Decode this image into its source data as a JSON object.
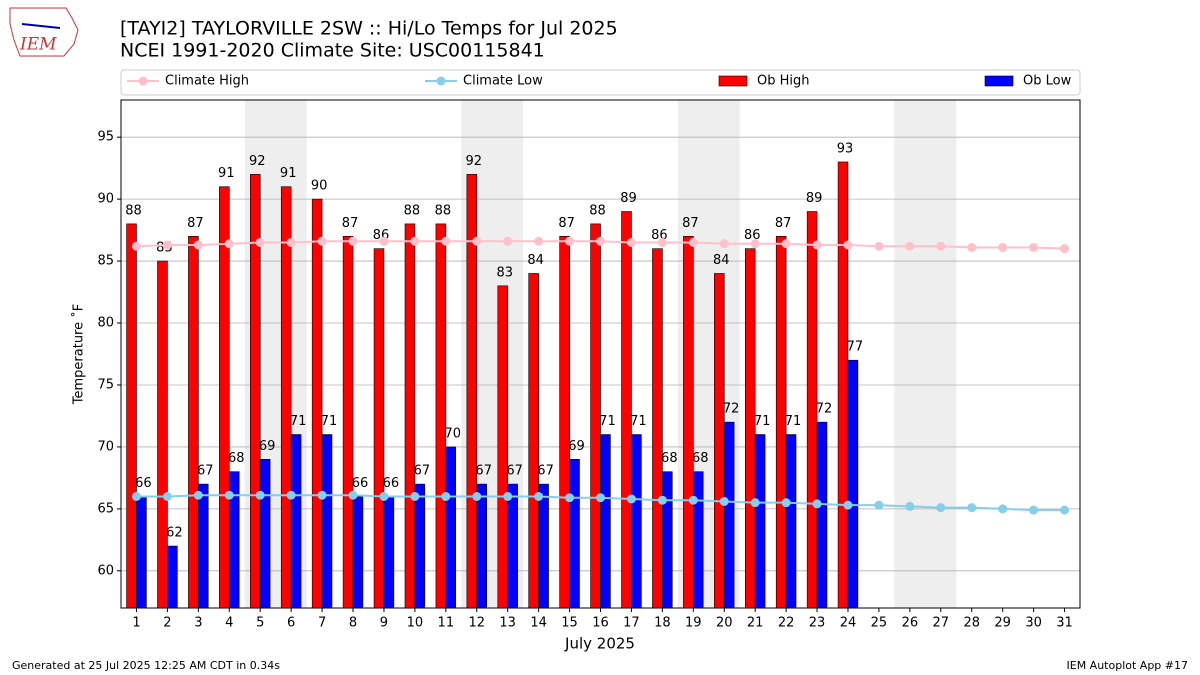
{
  "logo_text": "IEM",
  "footer_left": "Generated at 25 Jul 2025 12:25 AM CDT in 0.34s",
  "footer_right": "IEM Autoplot App #17",
  "chart_data": {
    "type": "bar",
    "title": "[TAYI2] TAYLORVILLE 2SW :: Hi/Lo Temps for Jul 2025",
    "subtitle": "NCEI 1991-2020 Climate Site: USC00115841",
    "ylabel": "Temperature ˚F",
    "xlabel": "July 2025",
    "x": [
      1,
      2,
      3,
      4,
      5,
      6,
      7,
      8,
      9,
      10,
      11,
      12,
      13,
      14,
      15,
      16,
      17,
      18,
      19,
      20,
      21,
      22,
      23,
      24,
      25,
      26,
      27,
      28,
      29,
      30,
      31
    ],
    "xlim": [
      0.5,
      31.5
    ],
    "ylim": [
      57,
      98
    ],
    "yticks": [
      60,
      65,
      70,
      75,
      80,
      85,
      90,
      95
    ],
    "grid": true,
    "shaded_days": [
      [
        5,
        6
      ],
      [
        12,
        13
      ],
      [
        19,
        20
      ],
      [
        26,
        27
      ]
    ],
    "series": [
      {
        "name": "Climate High",
        "type": "line",
        "color": "#ffc0cb",
        "values": [
          86.2,
          86.3,
          86.3,
          86.4,
          86.5,
          86.5,
          86.6,
          86.6,
          86.6,
          86.6,
          86.6,
          86.6,
          86.6,
          86.6,
          86.6,
          86.6,
          86.5,
          86.5,
          86.5,
          86.4,
          86.4,
          86.4,
          86.3,
          86.3,
          86.2,
          86.2,
          86.2,
          86.1,
          86.1,
          86.1,
          86.0
        ]
      },
      {
        "name": "Climate Low",
        "type": "line",
        "color": "#87ceeb",
        "values": [
          66.0,
          66.0,
          66.1,
          66.1,
          66.1,
          66.1,
          66.1,
          66.1,
          66.0,
          66.0,
          66.0,
          66.0,
          66.0,
          66.0,
          65.9,
          65.9,
          65.8,
          65.7,
          65.7,
          65.6,
          65.5,
          65.5,
          65.4,
          65.3,
          65.3,
          65.2,
          65.1,
          65.1,
          65.0,
          64.9,
          64.9
        ]
      },
      {
        "name": "Ob High",
        "type": "bar",
        "color": "#ff0000",
        "values": [
          88,
          85,
          87,
          91,
          92,
          91,
          90,
          87,
          86,
          88,
          88,
          92,
          83,
          84,
          87,
          88,
          89,
          86,
          87,
          84,
          86,
          87,
          89,
          93,
          null,
          null,
          null,
          null,
          null,
          null,
          null
        ]
      },
      {
        "name": "Ob Low",
        "type": "bar",
        "color": "#0000ff",
        "values": [
          66,
          62,
          67,
          68,
          69,
          71,
          71,
          66,
          66,
          67,
          70,
          67,
          67,
          67,
          69,
          71,
          71,
          68,
          68,
          72,
          71,
          71,
          72,
          77,
          null,
          null,
          null,
          null,
          null,
          null,
          null
        ]
      }
    ]
  }
}
